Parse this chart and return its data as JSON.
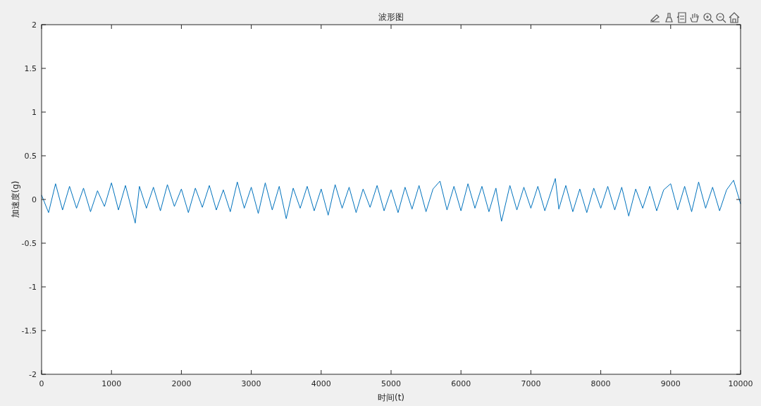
{
  "chart_data": {
    "type": "line",
    "title": "波形图",
    "xlabel": "时间(t)",
    "ylabel": "加速度(g)",
    "x": [
      0,
      100,
      200,
      300,
      400,
      500,
      600,
      700,
      800,
      900,
      1000,
      1100,
      1200,
      1340,
      1400,
      1500,
      1600,
      1700,
      1800,
      1900,
      2000,
      2100,
      2200,
      2300,
      2400,
      2500,
      2600,
      2700,
      2800,
      2900,
      3000,
      3100,
      3200,
      3300,
      3400,
      3500,
      3600,
      3700,
      3800,
      3900,
      4000,
      4100,
      4200,
      4300,
      4400,
      4500,
      4600,
      4700,
      4800,
      4900,
      5000,
      5100,
      5200,
      5300,
      5400,
      5500,
      5600,
      5700,
      5800,
      5900,
      6000,
      6100,
      6200,
      6300,
      6400,
      6500,
      6580,
      6700,
      6800,
      6900,
      7000,
      7100,
      7200,
      7350,
      7400,
      7500,
      7600,
      7700,
      7800,
      7900,
      8000,
      8100,
      8200,
      8300,
      8400,
      8500,
      8600,
      8700,
      8800,
      8900,
      9000,
      9100,
      9200,
      9300,
      9400,
      9500,
      9600,
      9700,
      9800,
      9900,
      10000
    ],
    "series": [
      {
        "color": "#0072bd",
        "values": [
          0.05,
          -0.15,
          0.18,
          -0.12,
          0.15,
          -0.1,
          0.13,
          -0.14,
          0.1,
          -0.08,
          0.19,
          -0.12,
          0.16,
          -0.27,
          0.15,
          -0.1,
          0.14,
          -0.13,
          0.17,
          -0.08,
          0.12,
          -0.15,
          0.13,
          -0.09,
          0.16,
          -0.12,
          0.11,
          -0.14,
          0.2,
          -0.1,
          0.14,
          -0.16,
          0.19,
          -0.12,
          0.15,
          -0.22,
          0.13,
          -0.1,
          0.15,
          -0.13,
          0.12,
          -0.18,
          0.17,
          -0.1,
          0.14,
          -0.15,
          0.12,
          -0.09,
          0.16,
          -0.13,
          0.11,
          -0.15,
          0.14,
          -0.11,
          0.16,
          -0.14,
          0.12,
          0.21,
          -0.12,
          0.15,
          -0.13,
          0.18,
          -0.1,
          0.15,
          -0.14,
          0.13,
          -0.25,
          0.16,
          -0.12,
          0.14,
          -0.1,
          0.15,
          -0.13,
          0.24,
          -0.11,
          0.16,
          -0.14,
          0.12,
          -0.15,
          0.13,
          -0.1,
          0.15,
          -0.12,
          0.14,
          -0.19,
          0.12,
          -0.1,
          0.15,
          -0.13,
          0.11,
          0.18,
          -0.12,
          0.15,
          -0.14,
          0.2,
          -0.1,
          0.14,
          -0.13,
          0.11,
          0.22,
          -0.05
        ]
      }
    ],
    "xlim": [
      0,
      10000
    ],
    "xticks": [
      0,
      1000,
      2000,
      3000,
      4000,
      5000,
      6000,
      7000,
      8000,
      9000,
      10000
    ],
    "ylim": [
      -2,
      2
    ],
    "yticks": [
      -2,
      -1.5,
      -1,
      -0.5,
      0,
      0.5,
      1,
      1.5,
      2
    ],
    "grid": false,
    "marker": "none",
    "line_style": "solid"
  }
}
